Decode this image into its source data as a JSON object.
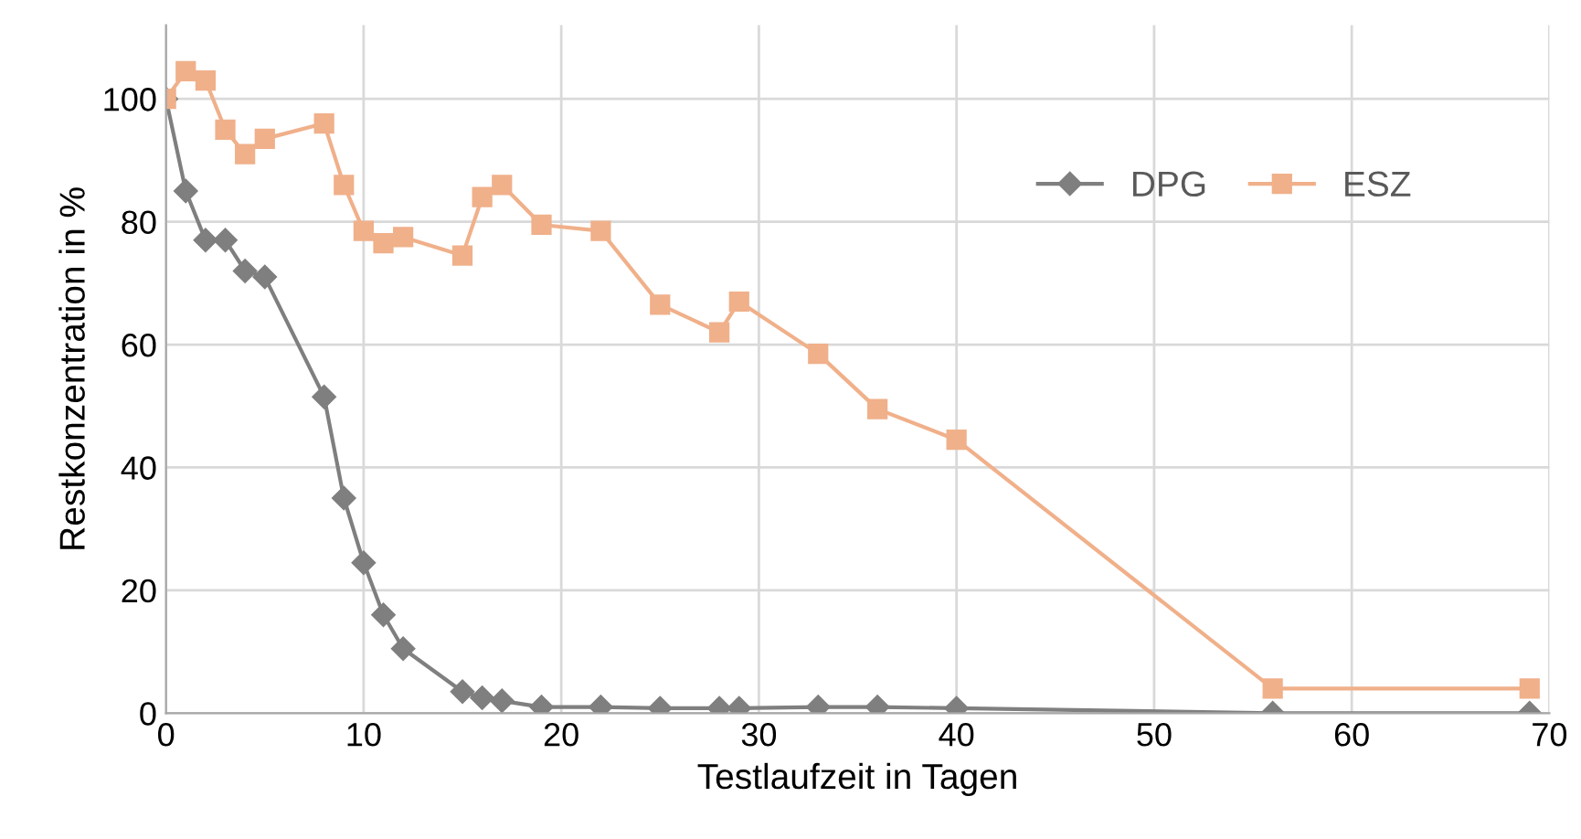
{
  "chart_data": {
    "type": "line",
    "xlabel": "Testlaufzeit in Tagen",
    "ylabel": "Restkonzentration in %",
    "xlim": [
      0,
      70
    ],
    "xticks": [
      0,
      10,
      20,
      30,
      40,
      50,
      60,
      70
    ],
    "ylim": [
      0,
      112
    ],
    "yticks": [
      0,
      20,
      40,
      60,
      80,
      100
    ],
    "grid": true,
    "legend": "top right",
    "series": [
      {
        "name": "DPG",
        "color": "#7f7f7f",
        "marker": "diamond",
        "x": [
          0,
          1,
          2,
          3,
          4,
          5,
          8,
          9,
          10,
          11,
          12,
          15,
          16,
          17,
          19,
          22,
          25,
          28,
          29,
          33,
          36,
          40,
          56,
          69
        ],
        "values": [
          100,
          85,
          77,
          77,
          72,
          71,
          51.5,
          35,
          24.5,
          16,
          10.5,
          3.5,
          2.5,
          2,
          1,
          1,
          0.8,
          0.8,
          0.8,
          1,
          1,
          0.8,
          0,
          0
        ]
      },
      {
        "name": "ESZ",
        "color": "#f0b08a",
        "marker": "square",
        "x": [
          0,
          1,
          2,
          3,
          4,
          5,
          8,
          9,
          10,
          11,
          12,
          15,
          16,
          17,
          19,
          22,
          25,
          28,
          29,
          33,
          36,
          40,
          56,
          69
        ],
        "values": [
          100,
          104.5,
          103,
          95,
          91,
          93.5,
          96,
          86,
          78.5,
          76.5,
          77.5,
          74.5,
          84,
          86,
          79.5,
          78.5,
          66.5,
          62,
          67,
          58.5,
          49.5,
          44.5,
          4,
          4
        ]
      }
    ]
  }
}
